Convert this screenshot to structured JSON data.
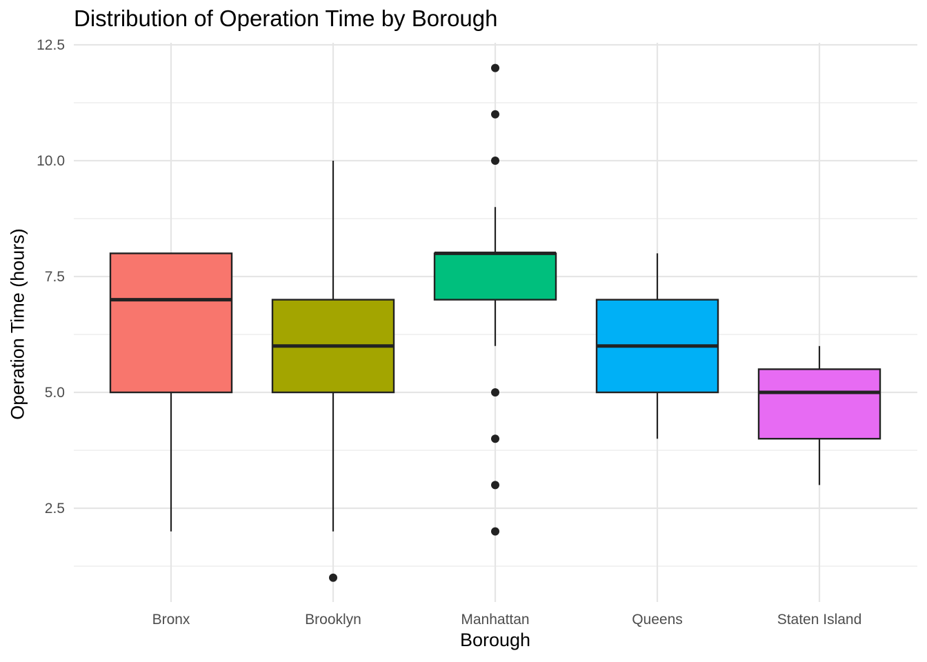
{
  "chart_data": {
    "type": "boxplot",
    "title": "Distribution of Operation Time by Borough",
    "xlabel": "Borough",
    "ylabel": "Operation Time (hours)",
    "ylim": [
      0.75,
      12.75
    ],
    "yticks": [
      2.5,
      5.0,
      7.5,
      10.0,
      12.5
    ],
    "ytick_labels": [
      "2.5",
      "5.0",
      "7.5",
      "10.0",
      "12.5"
    ],
    "grid": true,
    "legend": "none",
    "categories": [
      "Bronx",
      "Brooklyn",
      "Manhattan",
      "Queens",
      "Staten Island"
    ],
    "boxes": [
      {
        "category": "Bronx",
        "whisker_low": 2,
        "q1": 5,
        "median": 7,
        "q3": 8,
        "whisker_high": 8,
        "outliers": [],
        "color": "#F8766D"
      },
      {
        "category": "Brooklyn",
        "whisker_low": 2,
        "q1": 5,
        "median": 6,
        "q3": 7,
        "whisker_high": 10,
        "outliers": [
          1
        ],
        "color": "#A3A500"
      },
      {
        "category": "Manhattan",
        "whisker_low": 6,
        "q1": 7,
        "median": 8,
        "q3": 8,
        "whisker_high": 9,
        "outliers": [
          2,
          3,
          4,
          5,
          10,
          11,
          12
        ],
        "color": "#00BF7D"
      },
      {
        "category": "Queens",
        "whisker_low": 4,
        "q1": 5,
        "median": 6,
        "q3": 7,
        "whisker_high": 8,
        "outliers": [],
        "color": "#00B0F6"
      },
      {
        "category": "Staten Island",
        "whisker_low": 3,
        "q1": 4,
        "median": 5,
        "q3": 5.5,
        "whisker_high": 6,
        "outliers": [],
        "color": "#E76BF3"
      }
    ]
  }
}
